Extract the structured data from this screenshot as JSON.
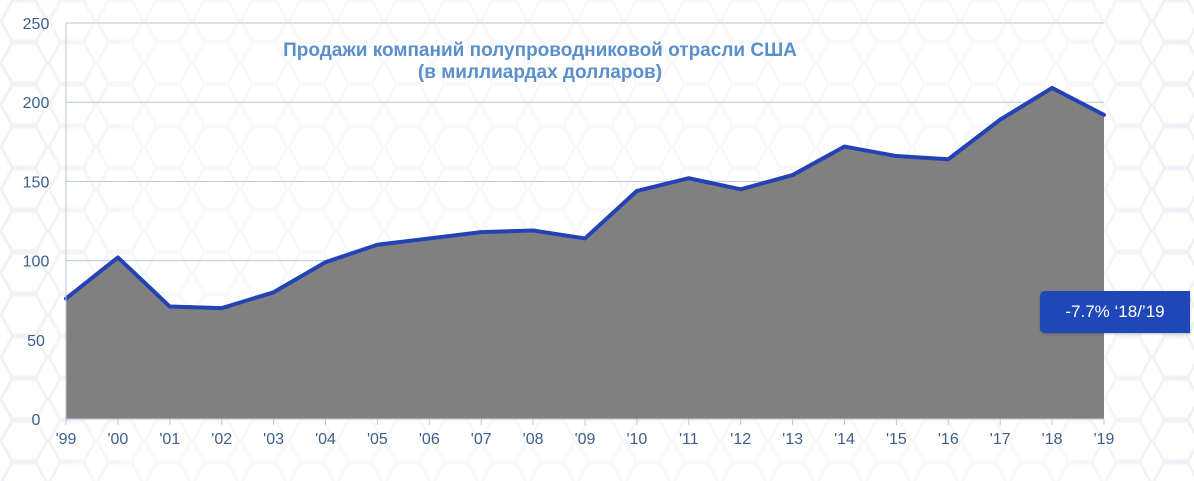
{
  "chart_data": {
    "type": "area",
    "title": "Продажи компаний полупроводниковой отрасли США",
    "subtitle": "(в миллиардах долларов)",
    "categories": [
      "'99",
      "'00",
      "'01",
      "'02",
      "'03",
      "'04",
      "'05",
      "'06",
      "'07",
      "'08",
      "'09",
      "'10",
      "'11",
      "'12",
      "'13",
      "'14",
      "'15",
      "'16",
      "'17",
      "'18",
      "'19"
    ],
    "values": [
      76,
      102,
      71,
      70,
      80,
      99,
      110,
      114,
      118,
      119,
      114,
      144,
      152,
      145,
      154,
      172,
      166,
      164,
      189,
      209,
      192
    ],
    "ylim": [
      0,
      250
    ],
    "yticks": [
      "0",
      "50",
      "100",
      "150",
      "200",
      "250"
    ],
    "xlabel": "",
    "ylabel": "",
    "grid": true,
    "annotation": "-7.7% ‘18/’19"
  },
  "colors": {
    "area_fill": "#808080",
    "line": "#2343b5",
    "grid": "#b9c6d6",
    "axis_text": "#3d5f8a",
    "title": "#5b8fc9",
    "badge_bg": "#1f47b8",
    "badge_text": "#ffffff"
  }
}
